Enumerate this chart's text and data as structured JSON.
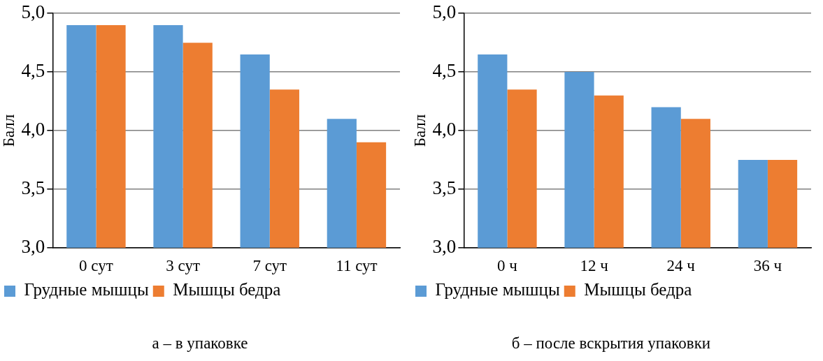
{
  "chart_data": [
    {
      "type": "bar",
      "title": "а – в упаковке",
      "ylabel": "Балл",
      "categories": [
        "0 сут",
        "3 сут",
        "7 сут",
        "11 сут"
      ],
      "series": [
        {
          "name": "Грудные мышцы",
          "color": "#5b9bd5",
          "values": [
            4.9,
            4.9,
            4.65,
            4.1
          ]
        },
        {
          "name": "Мышцы бедра",
          "color": "#ed7d31",
          "values": [
            4.9,
            4.75,
            4.35,
            3.9
          ]
        }
      ],
      "ylim": [
        3,
        5
      ],
      "yticks": [
        {
          "value": 3,
          "label": "3,0"
        },
        {
          "value": 3.5,
          "label": "3,5"
        },
        {
          "value": 4,
          "label": "4,0"
        },
        {
          "value": 4.5,
          "label": "4,5"
        },
        {
          "value": 5,
          "label": "5,0"
        }
      ],
      "grid": "y",
      "legend": "bottom"
    },
    {
      "type": "bar",
      "title": "б – после вскрытия упаковки",
      "ylabel": "Балл",
      "categories": [
        "0 ч",
        "12 ч",
        "24 ч",
        "36 ч"
      ],
      "series": [
        {
          "name": "Грудные мышцы",
          "color": "#5b9bd5",
          "values": [
            4.65,
            4.5,
            4.2,
            3.75
          ]
        },
        {
          "name": "Мышцы бедра",
          "color": "#ed7d31",
          "values": [
            4.35,
            4.3,
            4.1,
            3.75
          ]
        }
      ],
      "ylim": [
        3,
        5
      ],
      "yticks": [
        {
          "value": 3,
          "label": "3,0"
        },
        {
          "value": 3.5,
          "label": "3,5"
        },
        {
          "value": 4,
          "label": "4,0"
        },
        {
          "value": 4.5,
          "label": "4,5"
        },
        {
          "value": 5,
          "label": "5,0"
        }
      ],
      "grid": "y",
      "legend": "bottom"
    }
  ]
}
